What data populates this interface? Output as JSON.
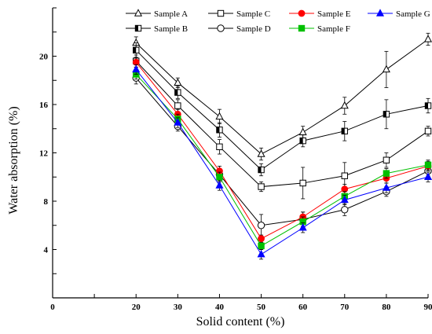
{
  "chart_data": {
    "type": "line",
    "xlabel": "Solid content  (%)",
    "ylabel": "Water absorption (%)",
    "xlim": [
      0,
      90
    ],
    "ylim": [
      0,
      24
    ],
    "x_ticks": [
      0,
      10,
      20,
      30,
      40,
      50,
      60,
      70,
      80,
      90
    ],
    "x_tick_labels": [
      "0",
      "",
      "20",
      "30",
      "40",
      "50",
      "60",
      "70",
      "80",
      "90"
    ],
    "y_ticks": [
      0,
      2,
      4,
      6,
      8,
      10,
      12,
      14,
      16,
      18,
      20,
      22,
      24
    ],
    "y_tick_labels": [
      "",
      "",
      "4",
      "",
      "8",
      "",
      "12",
      "",
      "16",
      "",
      "20",
      "",
      ""
    ],
    "grid": false,
    "legend_position": "top-center",
    "x": [
      20,
      30,
      40,
      50,
      60,
      70,
      80,
      90
    ],
    "series": [
      {
        "name": "Sample A",
        "color": "#000000",
        "marker": "triangle-open",
        "values": [
          21.1,
          17.8,
          15.0,
          11.9,
          13.7,
          15.9,
          18.9,
          21.4
        ],
        "errors": [
          0.5,
          0.4,
          0.6,
          0.5,
          0.5,
          0.7,
          1.5,
          0.5
        ]
      },
      {
        "name": "Sample B",
        "color": "#000000",
        "marker": "half-square",
        "values": [
          20.5,
          17.0,
          13.9,
          10.6,
          13.0,
          13.8,
          15.2,
          15.9
        ],
        "errors": [
          0.6,
          0.5,
          0.6,
          0.5,
          0.5,
          0.8,
          1.2,
          0.6
        ]
      },
      {
        "name": "Sample C",
        "color": "#000000",
        "marker": "square-open",
        "values": [
          19.6,
          15.9,
          12.5,
          9.2,
          9.5,
          10.1,
          11.4,
          13.8
        ],
        "errors": [
          0.5,
          0.5,
          0.6,
          0.4,
          1.3,
          1.1,
          0.6,
          0.4
        ]
      },
      {
        "name": "Sample D",
        "color": "#000000",
        "marker": "circle-open",
        "values": [
          18.2,
          14.2,
          10.2,
          6.0,
          6.5,
          7.3,
          8.8,
          10.5
        ],
        "errors": [
          0.5,
          0.4,
          0.5,
          0.9,
          0.6,
          0.5,
          0.4,
          0.4
        ]
      },
      {
        "name": "Sample E",
        "color": "#ff0000",
        "marker": "circle-filled",
        "values": [
          19.5,
          15.2,
          10.5,
          4.9,
          6.7,
          9.0,
          9.9,
          10.9
        ],
        "errors": [
          0.4,
          0.4,
          0.4,
          0.3,
          0.4,
          0.4,
          0.4,
          0.4
        ]
      },
      {
        "name": "Sample F",
        "color": "#00c000",
        "marker": "square-filled",
        "values": [
          18.5,
          14.8,
          10.0,
          4.3,
          6.3,
          8.4,
          10.3,
          11.0
        ],
        "errors": [
          0.4,
          0.4,
          0.4,
          0.3,
          0.4,
          0.4,
          0.4,
          0.4
        ]
      },
      {
        "name": "Sample G",
        "color": "#0000ff",
        "marker": "triangle-filled",
        "values": [
          18.9,
          14.5,
          9.3,
          3.6,
          5.8,
          8.1,
          9.1,
          10.0
        ],
        "errors": [
          0.4,
          0.4,
          0.4,
          0.4,
          0.4,
          0.4,
          0.4,
          0.4
        ]
      }
    ]
  }
}
